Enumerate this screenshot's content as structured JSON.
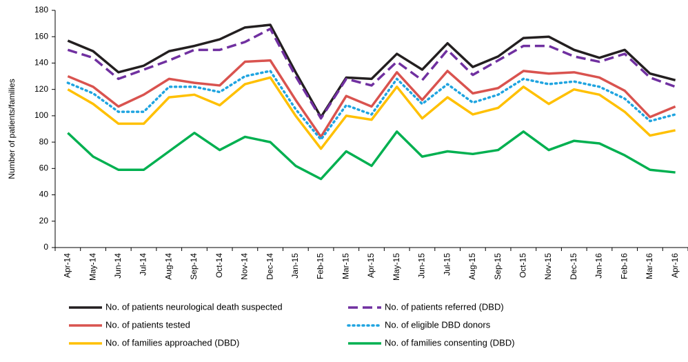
{
  "chart_data": {
    "type": "line",
    "y_label": "Number of patients/families",
    "categories": [
      "Apr-14",
      "May-14",
      "Jun-14",
      "Jul-14",
      "Aug-14",
      "Sep-14",
      "Oct-14",
      "Nov-14",
      "Dec-14",
      "Jan-15",
      "Feb-15",
      "Mar-15",
      "Apr-15",
      "May-15",
      "Jun-15",
      "Jul-15",
      "Aug-15",
      "Sep-15",
      "Oct-15",
      "Nov-15",
      "Dec-15",
      "Jan-16",
      "Feb-16",
      "Mar-16",
      "Apr-16"
    ],
    "series": [
      {
        "name": "No. of patients neurological death suspected",
        "color": "#231f20",
        "style": "solid",
        "values": [
          157,
          149,
          133,
          138,
          149,
          153,
          158,
          167,
          169,
          133,
          99,
          129,
          128,
          147,
          135,
          155,
          137,
          145,
          159,
          160,
          150,
          144,
          150,
          132,
          127
        ]
      },
      {
        "name": "No. of patients referred (DBD)",
        "color": "#7030a0",
        "style": "dashed",
        "values": [
          150,
          144,
          128,
          135,
          142,
          150,
          150,
          156,
          166,
          130,
          98,
          128,
          123,
          141,
          127,
          150,
          131,
          142,
          153,
          153,
          145,
          141,
          147,
          129,
          122
        ]
      },
      {
        "name": "No. of patients tested",
        "color": "#d9534f",
        "style": "solid",
        "values": [
          130,
          122,
          107,
          116,
          128,
          125,
          123,
          141,
          142,
          112,
          84,
          115,
          107,
          133,
          112,
          134,
          117,
          121,
          134,
          132,
          133,
          129,
          119,
          99,
          107
        ]
      },
      {
        "name": "No. of eligible DBD donors",
        "color": "#1fa4e0",
        "style": "dotted",
        "values": [
          125,
          117,
          103,
          103,
          122,
          122,
          118,
          130,
          134,
          105,
          82,
          108,
          101,
          128,
          109,
          124,
          110,
          116,
          128,
          124,
          126,
          122,
          113,
          96,
          101
        ]
      },
      {
        "name": "No. of families approached (DBD)",
        "color": "#ffc000",
        "style": "solid",
        "values": [
          120,
          109,
          94,
          94,
          114,
          116,
          108,
          124,
          129,
          100,
          75,
          100,
          97,
          122,
          98,
          114,
          101,
          106,
          122,
          109,
          120,
          116,
          103,
          85,
          89
        ]
      },
      {
        "name": "No. of families consenting (DBD)",
        "color": "#00b050",
        "style": "solid",
        "values": [
          87,
          69,
          59,
          59,
          73,
          87,
          74,
          84,
          80,
          62,
          52,
          73,
          62,
          88,
          69,
          73,
          71,
          74,
          88,
          74,
          81,
          79,
          70,
          59,
          57
        ]
      }
    ],
    "ylim": [
      0,
      180
    ],
    "yticks": [
      0,
      20,
      40,
      60,
      80,
      100,
      120,
      140,
      160,
      180
    ],
    "grid": false
  }
}
